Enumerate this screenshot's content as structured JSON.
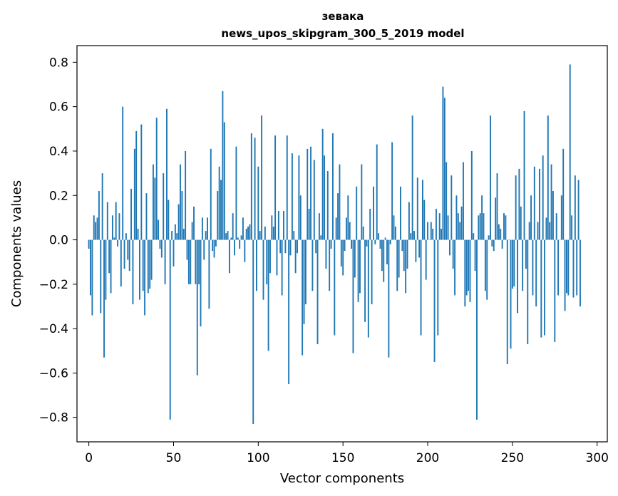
{
  "chart_data": {
    "type": "bar",
    "title_line1": "зевака",
    "title_line2": "news_upos_skipgram_300_5_2019 model",
    "xlabel": "Vector components",
    "ylabel": "Components values",
    "xlim": [
      -7,
      306
    ],
    "ylim": [
      -0.91,
      0.875
    ],
    "xticks": [
      0,
      50,
      100,
      150,
      200,
      250,
      300
    ],
    "xtick_labels": [
      "0",
      "50",
      "100",
      "150",
      "200",
      "250",
      "300"
    ],
    "yticks": [
      0.8,
      0.6,
      0.4,
      0.2,
      0.0,
      -0.2,
      -0.4,
      -0.6,
      -0.8
    ],
    "ytick_labels": [
      "0.8",
      "0.6",
      "0.4",
      "0.2",
      "0.0",
      "−0.2",
      "−0.4",
      "−0.6",
      "−0.8"
    ],
    "bar_color": "#1f77b4",
    "grid": false,
    "values": [
      -0.04,
      -0.25,
      -0.34,
      0.11,
      0.08,
      0.1,
      0.22,
      -0.33,
      0.3,
      -0.53,
      -0.27,
      0.17,
      -0.15,
      -0.24,
      0.11,
      0.01,
      0.17,
      -0.03,
      0.12,
      -0.21,
      0.6,
      -0.13,
      0.03,
      -0.09,
      -0.14,
      0.23,
      -0.29,
      0.41,
      0.49,
      0.05,
      -0.27,
      0.52,
      -0.23,
      -0.34,
      0.21,
      -0.24,
      -0.22,
      -0.18,
      0.34,
      0.28,
      0.55,
      0.09,
      -0.04,
      -0.08,
      0.3,
      -0.2,
      0.59,
      0.18,
      -0.81,
      0.04,
      -0.12,
      0.07,
      0.03,
      0.16,
      0.34,
      0.22,
      0.05,
      0.4,
      -0.09,
      -0.2,
      -0.2,
      0.08,
      0.15,
      -0.2,
      -0.61,
      -0.2,
      -0.39,
      0.1,
      -0.09,
      0.04,
      0.1,
      -0.31,
      0.41,
      -0.05,
      -0.08,
      -0.03,
      0.22,
      0.33,
      0.27,
      0.67,
      0.53,
      0.03,
      0.04,
      -0.15,
      0.01,
      0.12,
      -0.07,
      0.42,
      0.01,
      -0.04,
      0.02,
      0.1,
      -0.1,
      0.05,
      0.06,
      0.07,
      0.48,
      -0.83,
      0.46,
      -0.23,
      0.33,
      0.04,
      0.56,
      -0.27,
      0.06,
      -0.2,
      -0.5,
      -0.15,
      0.11,
      0.06,
      0.47,
      -0.16,
      0.13,
      -0.06,
      -0.25,
      0.13,
      -0.06,
      0.47,
      -0.65,
      -0.07,
      0.39,
      0.04,
      -0.15,
      -0.06,
      0.38,
      0.2,
      -0.52,
      -0.38,
      -0.29,
      0.41,
      0.14,
      0.42,
      -0.23,
      0.36,
      -0.06,
      -0.47,
      0.12,
      0.02,
      0.5,
      0.38,
      -0.13,
      0.31,
      -0.23,
      -0.04,
      0.48,
      -0.43,
      0.1,
      0.21,
      0.34,
      -0.12,
      -0.16,
      -0.05,
      0.1,
      0.2,
      0.08,
      -0.04,
      -0.51,
      -0.17,
      0.24,
      -0.28,
      -0.24,
      0.34,
      0.06,
      -0.37,
      -0.03,
      -0.44,
      0.14,
      -0.29,
      0.24,
      -0.02,
      0.43,
      0.03,
      -0.04,
      -0.14,
      -0.19,
      0.01,
      -0.11,
      -0.53,
      -0.02,
      0.44,
      0.11,
      0.06,
      -0.23,
      -0.17,
      0.24,
      -0.05,
      -0.14,
      -0.24,
      -0.13,
      0.17,
      0.03,
      0.56,
      0.04,
      -0.1,
      0.28,
      -0.08,
      -0.43,
      0.27,
      0.18,
      -0.18,
      0.08,
      0.0,
      0.08,
      0.05,
      -0.55,
      0.14,
      -0.43,
      0.12,
      0.05,
      0.69,
      0.64,
      0.35,
      0.11,
      -0.07,
      0.29,
      -0.13,
      -0.25,
      0.2,
      0.12,
      0.08,
      0.15,
      0.35,
      -0.3,
      -0.25,
      -0.23,
      -0.28,
      0.4,
      0.03,
      -0.14,
      -0.81,
      0.11,
      0.12,
      0.2,
      0.12,
      -0.23,
      -0.27,
      0.02,
      0.56,
      -0.03,
      -0.05,
      0.19,
      0.3,
      0.07,
      0.05,
      -0.04,
      0.12,
      0.11,
      -0.56,
      0.0,
      -0.49,
      -0.22,
      -0.21,
      0.29,
      -0.33,
      0.32,
      0.15,
      -0.23,
      0.58,
      -0.13,
      -0.47,
      0.08,
      0.2,
      -0.25,
      0.33,
      -0.3,
      0.08,
      0.32,
      -0.44,
      0.38,
      -0.43,
      0.1,
      0.56,
      0.08,
      0.34,
      0.22,
      -0.46,
      0.12,
      -0.25,
      0.0,
      0.2,
      0.41,
      -0.32,
      -0.24,
      -0.25,
      0.79,
      0.11,
      -0.26,
      0.29,
      -0.25,
      0.27,
      -0.3
    ]
  }
}
